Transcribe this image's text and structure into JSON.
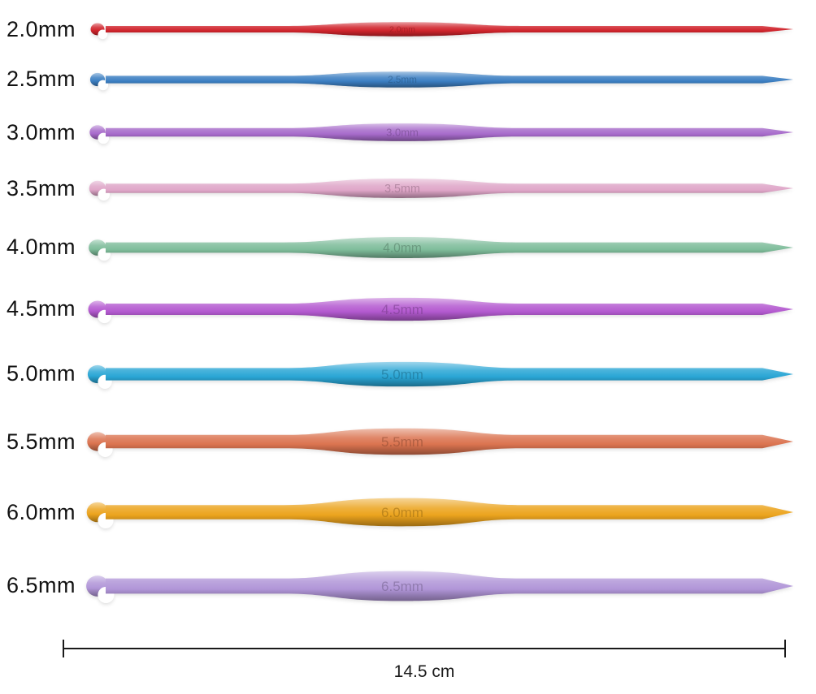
{
  "page": {
    "background": "#ffffff",
    "description": "Set of 10 aluminum crochet hooks in assorted colors with size labels"
  },
  "hooks": [
    {
      "label": "2.0mm",
      "emboss": "2.0mm",
      "size_mm": 2.0,
      "color": "#d0242c"
    },
    {
      "label": "2.5mm",
      "emboss": "2.5mm",
      "size_mm": 2.5,
      "color": "#3c7fc2"
    },
    {
      "label": "3.0mm",
      "emboss": "3.0mm",
      "size_mm": 3.0,
      "color": "#a76bcb"
    },
    {
      "label": "3.5mm",
      "emboss": "3.5mm",
      "size_mm": 3.5,
      "color": "#dfa6c8"
    },
    {
      "label": "4.0mm",
      "emboss": "4.0mm",
      "size_mm": 4.0,
      "color": "#7fbd9b"
    },
    {
      "label": "4.5mm",
      "emboss": "4.5mm",
      "size_mm": 4.5,
      "color": "#b45ad0"
    },
    {
      "label": "5.0mm",
      "emboss": "5.0mm",
      "size_mm": 5.0,
      "color": "#2aa6d5"
    },
    {
      "label": "5.5mm",
      "emboss": "5.5mm",
      "size_mm": 5.5,
      "color": "#db7450"
    },
    {
      "label": "6.0mm",
      "emboss": "6.0mm",
      "size_mm": 6.0,
      "color": "#eca41e"
    },
    {
      "label": "6.5mm",
      "emboss": "6.5mm",
      "size_mm": 6.5,
      "color": "#b196d8"
    }
  ],
  "dimension": {
    "length_label": "14.5 cm"
  }
}
